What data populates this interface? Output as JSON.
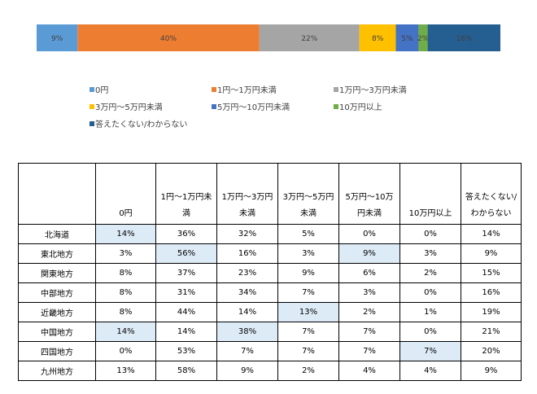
{
  "chart_data": {
    "type": "stacked-bar-100",
    "series": [
      {
        "name": "0円",
        "color": "#5b9bd5",
        "values": [
          9
        ],
        "value_labels": [
          "9%"
        ]
      },
      {
        "name": "1円～1万円未満",
        "color": "#ed7d31",
        "values": [
          40
        ],
        "value_labels": [
          "40%"
        ]
      },
      {
        "name": "1万円～3万円未満",
        "color": "#a5a5a5",
        "values": [
          22
        ],
        "value_labels": [
          "22%"
        ]
      },
      {
        "name": "3万円～5万円未満",
        "color": "#ffc000",
        "values": [
          8
        ],
        "value_labels": [
          "8%"
        ]
      },
      {
        "name": "5万円～10万円未満",
        "color": "#4472c4",
        "values": [
          5
        ],
        "value_labels": [
          "5%"
        ]
      },
      {
        "name": "10万円以上",
        "color": "#70ad47",
        "values": [
          2
        ],
        "value_labels": [
          "2%"
        ]
      },
      {
        "name": "答えたくない/わからない",
        "color": "#255e91",
        "values": [
          16
        ],
        "value_labels": [
          "16%"
        ]
      }
    ]
  },
  "table": {
    "header": [
      "0円",
      "1円～1万円未満",
      "1万円～3万円未満",
      "3万円～5万円未満",
      "5万円～10万円未満",
      "10万円以上",
      "答えたくない/わからない"
    ],
    "rows": [
      [
        "北海道",
        "14%",
        "36%",
        "32%",
        "5%",
        "0%",
        "0%",
        "14%"
      ],
      [
        "東北地方",
        "3%",
        "56%",
        "16%",
        "3%",
        "9%",
        "3%",
        "9%"
      ],
      [
        "関東地方",
        "8%",
        "37%",
        "23%",
        "9%",
        "6%",
        "2%",
        "15%"
      ],
      [
        "中部地方",
        "8%",
        "31%",
        "34%",
        "7%",
        "3%",
        "0%",
        "16%"
      ],
      [
        "近畿地方",
        "8%",
        "44%",
        "14%",
        "13%",
        "2%",
        "1%",
        "19%"
      ],
      [
        "中国地方",
        "14%",
        "14%",
        "38%",
        "7%",
        "7%",
        "0%",
        "21%"
      ],
      [
        "四国地方",
        "0%",
        "53%",
        "7%",
        "7%",
        "7%",
        "7%",
        "20%"
      ],
      [
        "九州地方",
        "13%",
        "58%",
        "9%",
        "2%",
        "4%",
        "4%",
        "9%"
      ]
    ]
  }
}
